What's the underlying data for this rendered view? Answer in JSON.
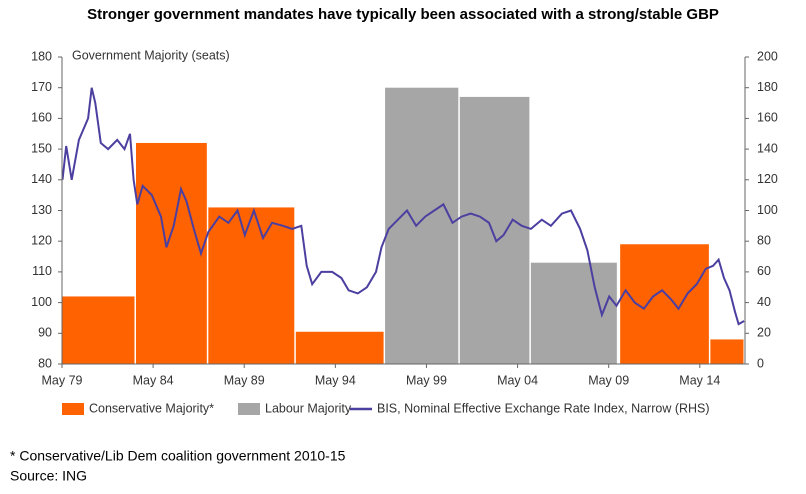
{
  "chart_data": {
    "type": "combo",
    "title": "Stronger government mandates have typically been associated with a strong/stable GBP",
    "y_label": "Government Majority (seats)",
    "xlim": [
      1979.37,
      2016.85
    ],
    "xticks": [
      {
        "value": 1979.37,
        "label": "May 79"
      },
      {
        "value": 1984.37,
        "label": "May 84"
      },
      {
        "value": 1989.37,
        "label": "May 89"
      },
      {
        "value": 1994.37,
        "label": "May 94"
      },
      {
        "value": 1999.37,
        "label": "May 99"
      },
      {
        "value": 2004.37,
        "label": "May 04"
      },
      {
        "value": 2009.37,
        "label": "May 09"
      },
      {
        "value": 2014.37,
        "label": "May 14"
      }
    ],
    "ylim": [
      80,
      180
    ],
    "yticks": [
      80,
      90,
      100,
      110,
      120,
      130,
      140,
      150,
      160,
      170,
      180
    ],
    "y2lim": [
      0,
      200
    ],
    "y2ticks": [
      0,
      20,
      40,
      60,
      80,
      100,
      120,
      140,
      160,
      180,
      200
    ],
    "grid": false,
    "legend": "bottom",
    "series": [
      {
        "name": "Conservative Majority*",
        "color": "#ff6200",
        "type": "bar",
        "periods": [
          [
            1979.37,
            1983.43
          ],
          [
            1983.43,
            1987.4
          ],
          [
            1987.4,
            1992.2
          ],
          [
            1992.2,
            1997.1
          ],
          [
            2010.0,
            2014.95
          ],
          [
            2014.95,
            2016.85
          ]
        ],
        "values": [
          102,
          152,
          131,
          90.5,
          119,
          88
        ]
      },
      {
        "name": "Labour Majority",
        "color": "#a6a6a6",
        "type": "bar",
        "periods": [
          [
            1997.1,
            2001.2
          ],
          [
            2001.2,
            2005.1
          ],
          [
            2005.1,
            2009.9
          ]
        ],
        "values": [
          170,
          167,
          113
        ]
      },
      {
        "name": "BIS, Nominal Effective Exchange Rate Index, Narrow (RHS)",
        "color": "#4b3fa0",
        "type": "line",
        "axis": "y2",
        "x": [
          1979.4,
          1979.6,
          1979.9,
          1980.3,
          1980.8,
          1981.0,
          1981.2,
          1981.5,
          1981.9,
          1982.4,
          1982.8,
          1983.1,
          1983.3,
          1983.5,
          1983.8,
          1984.3,
          1984.8,
          1985.1,
          1985.5,
          1985.9,
          1986.2,
          1986.6,
          1987.0,
          1987.4,
          1988.0,
          1988.5,
          1989.0,
          1989.4,
          1989.9,
          1990.4,
          1990.9,
          1991.5,
          1992.0,
          1992.5,
          1992.8,
          1993.1,
          1993.6,
          1994.2,
          1994.7,
          1995.1,
          1995.6,
          1996.1,
          1996.6,
          1996.9,
          1997.3,
          1997.8,
          1998.3,
          1998.8,
          1999.3,
          1999.8,
          2000.3,
          2000.8,
          2001.3,
          2001.8,
          2002.3,
          2002.8,
          2003.2,
          2003.6,
          2004.1,
          2004.6,
          2005.1,
          2005.7,
          2006.2,
          2006.8,
          2007.3,
          2007.8,
          2008.2,
          2008.6,
          2009.0,
          2009.4,
          2009.8,
          2010.3,
          2010.8,
          2011.3,
          2011.8,
          2012.3,
          2012.8,
          2013.2,
          2013.7,
          2014.2,
          2014.7,
          2015.1,
          2015.4,
          2015.7,
          2016.0,
          2016.3,
          2016.5,
          2016.8
        ],
        "values": [
          120,
          142,
          120,
          146,
          160,
          180,
          170,
          144,
          140,
          146,
          140,
          150,
          120,
          104,
          116,
          110,
          96,
          76,
          90,
          114,
          106,
          88,
          72,
          86,
          96,
          92,
          100,
          84,
          100,
          82,
          92,
          90,
          88,
          90,
          64,
          52,
          60,
          60,
          56,
          48,
          46,
          50,
          60,
          76,
          88,
          94,
          100,
          90,
          96,
          100,
          104,
          92,
          96,
          98,
          96,
          92,
          80,
          84,
          94,
          90,
          88,
          94,
          90,
          98,
          100,
          88,
          74,
          50,
          32,
          44,
          38,
          48,
          40,
          36,
          44,
          48,
          42,
          36,
          46,
          52,
          62,
          64,
          68,
          56,
          48,
          34,
          26,
          28
        ]
      }
    ],
    "footnote": "* Conservative/Lib Dem coalition government 2010-15",
    "source": "Source: ING"
  }
}
